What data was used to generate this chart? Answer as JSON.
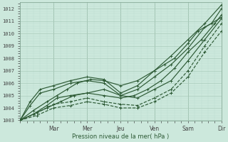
{
  "title": "",
  "xlabel": "Pression niveau de la mer( hPa )",
  "ylabel": "",
  "bg_color": "#cce8dc",
  "grid_color_major": "#aaccbb",
  "grid_color_minor": "#bbddd0",
  "line_color": "#2d5a35",
  "ylim": [
    1003,
    1012.5
  ],
  "xlim": [
    0,
    6.0
  ],
  "yticks": [
    1003,
    1004,
    1005,
    1006,
    1007,
    1008,
    1009,
    1010,
    1011,
    1012
  ],
  "xtick_labels": [
    "Mar",
    "Mer",
    "Jeu",
    "Ven",
    "Sam",
    "Dir"
  ],
  "xtick_pos": [
    1,
    2,
    3,
    4,
    5,
    6
  ],
  "series": [
    {
      "x": [
        0.0,
        0.3,
        0.6,
        1.0,
        1.5,
        2.0,
        2.5,
        3.0,
        3.5,
        4.0,
        4.5,
        5.0,
        5.5,
        6.0
      ],
      "y": [
        1003.0,
        1004.5,
        1005.5,
        1005.8,
        1006.2,
        1006.5,
        1006.3,
        1005.2,
        1005.8,
        1007.0,
        1008.2,
        1009.5,
        1010.8,
        1012.3
      ],
      "style": "-",
      "marker": "+"
    },
    {
      "x": [
        0.0,
        0.3,
        0.6,
        1.0,
        1.5,
        2.0,
        2.5,
        3.0,
        3.5,
        4.0,
        4.5,
        5.0,
        5.5,
        6.0
      ],
      "y": [
        1003.0,
        1004.2,
        1005.2,
        1005.5,
        1006.0,
        1006.2,
        1006.0,
        1005.0,
        1005.5,
        1006.5,
        1007.5,
        1008.8,
        1010.5,
        1011.3
      ],
      "style": "-",
      "marker": "+"
    },
    {
      "x": [
        0.0,
        0.4,
        0.8,
        1.1,
        1.4,
        1.7,
        2.1,
        2.5,
        3.0,
        3.5,
        4.0,
        4.3,
        4.6,
        5.0,
        5.3,
        5.7,
        6.0
      ],
      "y": [
        1003.0,
        1003.8,
        1004.5,
        1005.0,
        1005.5,
        1006.0,
        1006.3,
        1006.2,
        1005.8,
        1006.2,
        1007.0,
        1007.5,
        1008.0,
        1009.2,
        1010.2,
        1010.8,
        1012.0
      ],
      "style": "-",
      "marker": "+"
    },
    {
      "x": [
        0.0,
        0.4,
        0.8,
        1.2,
        1.6,
        2.0,
        2.5,
        3.0,
        3.5,
        4.0,
        4.5,
        5.0,
        5.5,
        6.0
      ],
      "y": [
        1003.0,
        1003.5,
        1004.0,
        1004.5,
        1005.0,
        1005.2,
        1005.5,
        1005.0,
        1004.8,
        1005.5,
        1006.2,
        1007.8,
        1009.5,
        1011.2
      ],
      "style": "-",
      "marker": "+"
    },
    {
      "x": [
        0.0,
        0.4,
        0.8,
        1.1,
        1.5,
        2.0,
        2.5,
        3.0,
        3.4,
        3.8,
        4.2,
        4.6,
        5.0,
        5.4,
        5.8,
        6.0
      ],
      "y": [
        1003.0,
        1003.5,
        1004.2,
        1004.8,
        1005.0,
        1005.2,
        1005.0,
        1004.8,
        1005.0,
        1005.5,
        1006.2,
        1007.2,
        1008.5,
        1009.5,
        1010.8,
        1011.5
      ],
      "style": "-",
      "marker": "+"
    },
    {
      "x": [
        0.0,
        0.5,
        1.0,
        1.5,
        2.0,
        2.5,
        3.0,
        3.5,
        4.0,
        4.5,
        5.0,
        5.5,
        6.0
      ],
      "y": [
        1003.0,
        1003.6,
        1004.3,
        1004.5,
        1004.8,
        1004.5,
        1004.3,
        1004.2,
        1004.8,
        1005.5,
        1007.0,
        1009.0,
        1010.8
      ],
      "style": "--",
      "marker": "+"
    },
    {
      "x": [
        0.0,
        0.5,
        1.0,
        1.5,
        2.0,
        2.5,
        3.0,
        3.5,
        4.0,
        4.5,
        5.0,
        5.5,
        6.0
      ],
      "y": [
        1003.0,
        1003.4,
        1004.0,
        1004.2,
        1004.5,
        1004.3,
        1004.0,
        1004.0,
        1004.5,
        1005.2,
        1006.5,
        1008.5,
        1010.2
      ],
      "style": "--",
      "marker": "+"
    }
  ]
}
